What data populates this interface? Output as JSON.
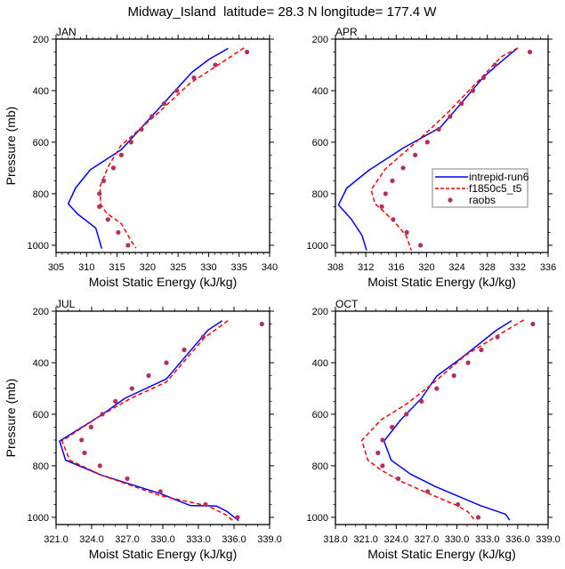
{
  "title": "Midway_Island  latitude= 28.3 N longitude= 177.4 W",
  "legend": {
    "placement": "inside APR panel, right",
    "entries": [
      {
        "name": "intrepid-run6",
        "style": "solid-line",
        "color": "#0000ff"
      },
      {
        "name": "f1850c5_t5",
        "style": "dashed-line",
        "color": "#ff0000"
      },
      {
        "name": "raobs",
        "style": "marker",
        "color": "#b03060"
      }
    ]
  },
  "chart_data": [
    {
      "type": "line",
      "title": "JAN",
      "xlabel": "Moist Static Energy (kJ/kg)",
      "ylabel": "Pressure (mb)",
      "xlim": [
        305,
        340
      ],
      "ylim": [
        200,
        1028
      ],
      "y_inverted": true,
      "xticks": [
        305,
        310,
        315,
        320,
        325,
        330,
        335,
        340
      ],
      "xtick_labels": [
        "305",
        "310",
        "315",
        "320",
        "325",
        "330",
        "335",
        "340"
      ],
      "x_minor_per_major": 4,
      "yticks": [
        200,
        400,
        600,
        800,
        1000
      ],
      "ytick_labels": [
        "200",
        "400",
        "600",
        "800",
        "1000"
      ],
      "show_ylabel": true,
      "series": [
        {
          "name": "intrepid-run6",
          "p": [
            236,
            278,
            328,
            629,
            707,
            778,
            839,
            878,
            933,
            1013
          ],
          "mse": [
            333.2,
            330.1,
            327.3,
            315.7,
            310.6,
            308.2,
            307.0,
            308.5,
            311.5,
            312.5
          ]
        },
        {
          "name": "f1850c5_t5",
          "p": [
            234,
            301,
            372,
            485,
            560,
            614,
            692,
            772,
            841,
            876,
            916,
            979,
            1011
          ],
          "mse": [
            335.8,
            331.5,
            326.9,
            321.8,
            318.2,
            315.6,
            313.6,
            312.2,
            312.3,
            313.3,
            315.7,
            317.2,
            318.1
          ]
        },
        {
          "name": "raobs",
          "p": [
            250,
            300,
            350,
            400,
            450,
            500,
            550,
            600,
            650,
            700,
            750,
            800,
            850,
            900,
            950,
            1000
          ],
          "mse": [
            336.3,
            331.1,
            327.6,
            324.8,
            322.7,
            320.7,
            319.0,
            317.3,
            315.7,
            314.4,
            312.8,
            312.1,
            312.1,
            313.5,
            315.2,
            316.8
          ]
        }
      ]
    },
    {
      "type": "line",
      "title": "APR",
      "xlabel": "Moist Static Energy (kJ/kg)",
      "ylabel": "",
      "xlim": [
        308,
        336
      ],
      "ylim": [
        200,
        1028
      ],
      "y_inverted": true,
      "xticks": [
        308,
        312,
        316,
        320,
        324,
        328,
        332,
        336
      ],
      "xtick_labels": [
        "308",
        "312",
        "316",
        "320",
        "324",
        "328",
        "332",
        "336"
      ],
      "x_minor_per_major": 3,
      "yticks": [
        200,
        400,
        600,
        800,
        1000
      ],
      "ytick_labels": [
        "200",
        "400",
        "600",
        "800",
        "1000"
      ],
      "show_ylabel": false,
      "series": [
        {
          "name": "intrepid-run6",
          "p": [
            235,
            278,
            347,
            451,
            543,
            623,
            709,
            778,
            843,
            899,
            962,
            1020
          ],
          "mse": [
            332.0,
            330.2,
            327.5,
            324.5,
            321.8,
            316.9,
            312.4,
            309.5,
            308.4,
            310.1,
            311.5,
            312.1
          ]
        },
        {
          "name": "f1850c5_t5",
          "p": [
            235,
            269,
            341,
            485,
            560,
            634,
            703,
            784,
            839,
            864,
            910,
            962,
            1020
          ],
          "mse": [
            332.0,
            329.8,
            327.5,
            322.8,
            320.1,
            317.3,
            314.6,
            312.7,
            313.2,
            314.2,
            315.8,
            317.3,
            318.0
          ]
        },
        {
          "name": "raobs",
          "p": [
            250,
            300,
            350,
            400,
            450,
            500,
            550,
            600,
            650,
            700,
            750,
            800,
            850,
            900,
            950,
            1000
          ],
          "mse": [
            333.6,
            329.0,
            327.5,
            326.1,
            324.6,
            323.1,
            321.6,
            320.1,
            318.5,
            316.9,
            315.5,
            314.6,
            314.1,
            315.6,
            317.4,
            319.2
          ]
        }
      ]
    },
    {
      "type": "line",
      "title": "JUL",
      "xlabel": "Moist Static Energy (kJ/kg)",
      "ylabel": "Pressure (mb)",
      "xlim": [
        321,
        339
      ],
      "ylim": [
        200,
        1028
      ],
      "y_inverted": true,
      "xticks": [
        321,
        324,
        327,
        330,
        333,
        336,
        339
      ],
      "xtick_labels": [
        "321.0",
        "324.0",
        "327.0",
        "330.0",
        "333.0",
        "336.0",
        "339.0"
      ],
      "x_minor_per_major": 2,
      "yticks": [
        200,
        400,
        600,
        800,
        1000
      ],
      "ytick_labels": [
        "200",
        "400",
        "600",
        "800",
        "1000"
      ],
      "show_ylabel": true,
      "series": [
        {
          "name": "intrepid-run6",
          "p": [
            237,
            274,
            463,
            538,
            601,
            704,
            778,
            836,
            908,
            954,
            956,
            977,
            1013
          ],
          "mse": [
            335.0,
            333.8,
            330.3,
            326.8,
            324.9,
            321.3,
            321.8,
            324.8,
            329.8,
            332.3,
            334.5,
            335.4,
            336.4
          ]
        },
        {
          "name": "f1850c5_t5",
          "p": [
            237,
            303,
            475,
            538,
            612,
            704,
            778,
            836,
            916,
            956,
            990,
            1016
          ],
          "mse": [
            335.5,
            333.5,
            330.3,
            327.3,
            324.5,
            321.5,
            322.15,
            324.8,
            329.8,
            333.8,
            335.3,
            336.0
          ]
        },
        {
          "name": "raobs",
          "p": [
            250,
            300,
            350,
            400,
            450,
            500,
            550,
            600,
            650,
            700,
            750,
            800,
            850,
            900,
            950,
            1000
          ],
          "mse": [
            338.35,
            333.4,
            331.8,
            330.3,
            328.8,
            327.4,
            326.0,
            324.9,
            323.95,
            323.15,
            323.4,
            324.7,
            327.0,
            329.8,
            333.6,
            336.3
          ]
        }
      ]
    },
    {
      "type": "line",
      "title": "OCT",
      "xlabel": "Moist Static Energy (kJ/kg)",
      "ylabel": "",
      "xlim": [
        318,
        339
      ],
      "ylim": [
        200,
        1028
      ],
      "y_inverted": true,
      "xticks": [
        318,
        321,
        324,
        327,
        330,
        333,
        336,
        339
      ],
      "xtick_labels": [
        "318.0",
        "321.0",
        "324.0",
        "327.0",
        "330.0",
        "333.0",
        "336.0",
        "339.0"
      ],
      "x_minor_per_major": 2,
      "yticks": [
        200,
        400,
        600,
        800,
        1000
      ],
      "ytick_labels": [
        "200",
        "400",
        "600",
        "800",
        "1000"
      ],
      "show_ylabel": false,
      "series": [
        {
          "name": "intrepid-run6",
          "p": [
            237,
            274,
            383,
            452,
            538,
            624,
            704,
            778,
            832,
            881,
            954,
            988,
            1011
          ],
          "mse": [
            335.4,
            333.9,
            330.4,
            328.0,
            326.5,
            324.4,
            322.8,
            323.5,
            325.4,
            327.9,
            332.3,
            334.8,
            335.2
          ]
        },
        {
          "name": "f1850c5_t5",
          "p": [
            234,
            297,
            372,
            481,
            561,
            622,
            702,
            778,
            816,
            859,
            904,
            954,
            979,
            1008
          ],
          "mse": [
            336.6,
            333.9,
            330.8,
            327.6,
            325.0,
            322.5,
            320.6,
            321.2,
            322.5,
            324.4,
            327.0,
            330.0,
            331.1,
            331.7
          ]
        },
        {
          "name": "raobs",
          "p": [
            250,
            300,
            350,
            400,
            450,
            500,
            550,
            600,
            650,
            700,
            750,
            800,
            850,
            900,
            950,
            1000
          ],
          "mse": [
            337.5,
            334.0,
            332.4,
            331.1,
            329.7,
            328.0,
            326.5,
            325.0,
            323.6,
            322.65,
            322.2,
            322.65,
            324.2,
            327.1,
            330.1,
            332.1
          ]
        }
      ]
    }
  ]
}
